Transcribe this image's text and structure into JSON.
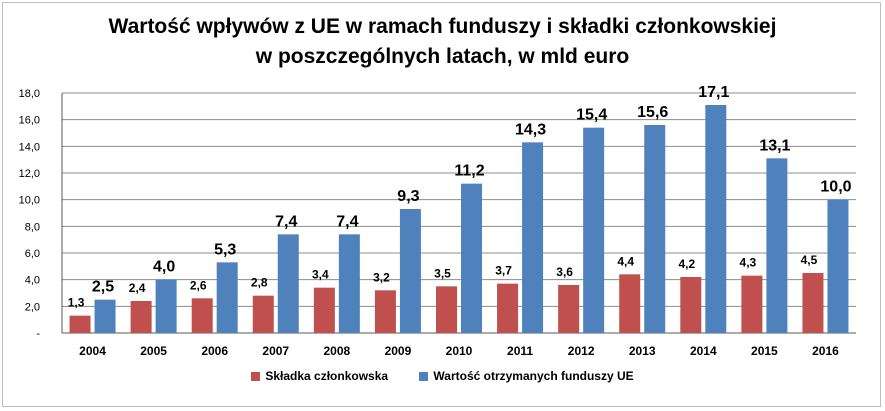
{
  "chart_data": {
    "type": "bar",
    "title_line1": "Wartość wpływów z UE w ramach funduszy i składki członkowskiej",
    "title_line2": "w poszczególnych latach, w mld euro",
    "categories": [
      "2004",
      "2005",
      "2006",
      "2007",
      "2008",
      "2009",
      "2010",
      "2011",
      "2012",
      "2013",
      "2014",
      "2015",
      "2016"
    ],
    "series": [
      {
        "name": "Składka członkowska",
        "color": "#c0504d",
        "values": [
          1.3,
          2.4,
          2.6,
          2.8,
          3.4,
          3.2,
          3.5,
          3.7,
          3.6,
          4.4,
          4.2,
          4.3,
          4.5
        ],
        "labels": [
          "1,3",
          "2,4",
          "2,6",
          "2,8",
          "3,4",
          "3,2",
          "3,5",
          "3,7",
          "3,6",
          "4,4",
          "4,2",
          "4,3",
          "4,5"
        ]
      },
      {
        "name": "Wartość otrzymanych funduszy UE",
        "color": "#4f81bd",
        "values": [
          2.5,
          4.0,
          5.3,
          7.4,
          7.4,
          9.3,
          11.2,
          14.3,
          15.4,
          15.6,
          17.1,
          13.1,
          10.0
        ],
        "labels": [
          "2,5",
          "4,0",
          "5,3",
          "7,4",
          "7,4",
          "9,3",
          "11,2",
          "14,3",
          "15,4",
          "15,6",
          "17,1",
          "13,1",
          "10,0"
        ]
      }
    ],
    "ylim": [
      0,
      18
    ],
    "yticks": [
      0,
      2,
      4,
      6,
      8,
      10,
      12,
      14,
      16,
      18
    ],
    "ytick_labels": [
      "-",
      "2,0",
      "4,0",
      "6,0",
      "8,0",
      "10,0",
      "12,0",
      "14,0",
      "16,0",
      "18,0"
    ],
    "grid": true,
    "legend_position": "bottom"
  }
}
